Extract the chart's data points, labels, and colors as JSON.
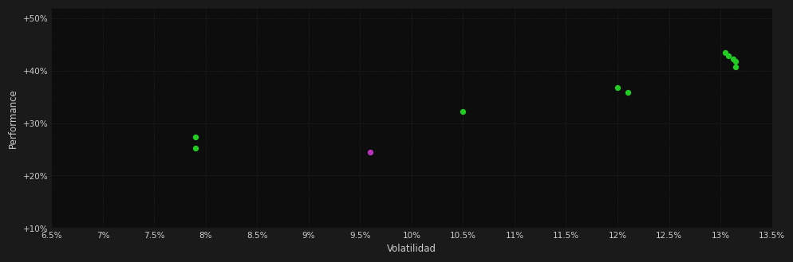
{
  "background_color": "#1a1a1a",
  "plot_bg_color": "#0d0d0d",
  "grid_color": "#2a2a2a",
  "xlabel": "Volatilidad",
  "ylabel": "Performance",
  "xlim": [
    0.065,
    0.135
  ],
  "ylim": [
    0.1,
    0.52
  ],
  "xticks": [
    0.065,
    0.07,
    0.075,
    0.08,
    0.085,
    0.09,
    0.095,
    0.1,
    0.105,
    0.11,
    0.115,
    0.12,
    0.125,
    0.13,
    0.135
  ],
  "yticks": [
    0.1,
    0.2,
    0.3,
    0.4,
    0.5
  ],
  "green_points": [
    [
      0.079,
      0.273
    ],
    [
      0.079,
      0.252
    ],
    [
      0.105,
      0.322
    ],
    [
      0.12,
      0.368
    ],
    [
      0.121,
      0.358
    ],
    [
      0.1305,
      0.435
    ],
    [
      0.1308,
      0.428
    ],
    [
      0.1312,
      0.423
    ],
    [
      0.1315,
      0.418
    ],
    [
      0.1315,
      0.408
    ]
  ],
  "magenta_points": [
    [
      0.096,
      0.245
    ]
  ],
  "green_color": "#22cc22",
  "magenta_color": "#bb33bb",
  "point_size": 18,
  "tick_label_color": "#cccccc",
  "axis_label_color": "#cccccc",
  "tick_fontsize": 7.5,
  "label_fontsize": 8.5
}
